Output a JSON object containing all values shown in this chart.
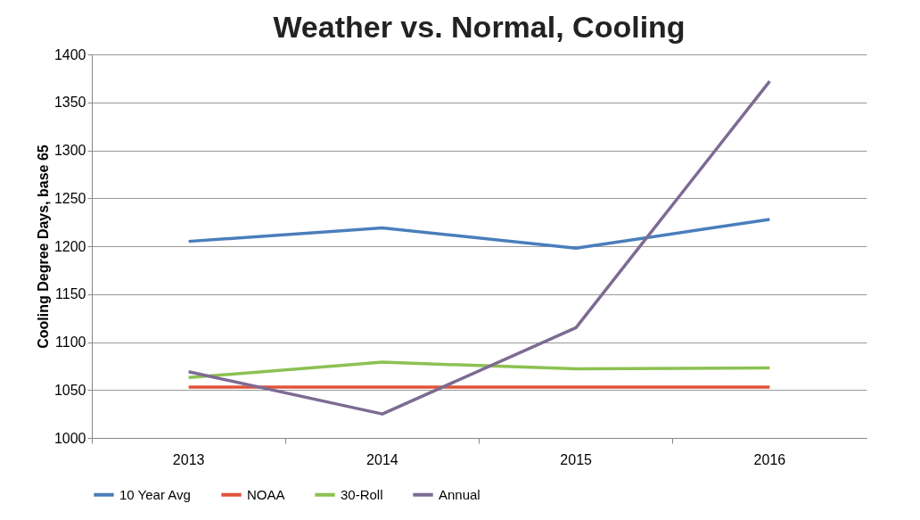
{
  "chart_data": {
    "type": "line",
    "title": "Weather vs. Normal, Cooling",
    "ylabel": "Cooling Degree Days, base 65",
    "categories": [
      "2013",
      "2014",
      "2015",
      "2016"
    ],
    "series": [
      {
        "name": "10 Year Avg",
        "color": "#4a7ebb",
        "values": [
          1205,
          1219,
          1198,
          1228
        ]
      },
      {
        "name": "NOAA",
        "color": "#e0533a",
        "values": [
          1053,
          1053,
          1053,
          1053
        ]
      },
      {
        "name": "30-Roll",
        "color": "#8cc152",
        "values": [
          1063,
          1079,
          1072,
          1073
        ]
      },
      {
        "name": "Annual",
        "color": "#7d6b93",
        "values": [
          1069,
          1025,
          1115,
          1372
        ]
      }
    ],
    "ylim": [
      1000,
      1400
    ],
    "yticks": [
      1000,
      1050,
      1100,
      1150,
      1200,
      1250,
      1300,
      1350,
      1400
    ],
    "grid": "y",
    "legend": "bottom",
    "marker": "none",
    "line_style": "solid"
  }
}
